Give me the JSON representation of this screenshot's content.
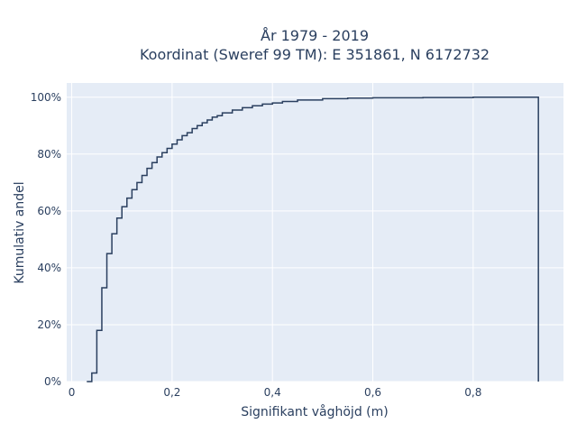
{
  "chart_data": {
    "type": "line",
    "line_shape": "step",
    "title_lines": [
      "År 1979 - 2019",
      "Koordinat (Sweref 99 TM): E 351861, N 6172732"
    ],
    "xlabel": "Signifikant våghöjd (m)",
    "ylabel": "Kumulativ andel",
    "xlim": [
      -0.01,
      0.98
    ],
    "ylim": [
      0,
      1.05
    ],
    "x_ticks": [
      0,
      0.2,
      0.4,
      0.6,
      0.8
    ],
    "x_tick_labels": [
      "0",
      "0,2",
      "0,4",
      "0,6",
      "0,8"
    ],
    "y_ticks": [
      0,
      0.2,
      0.4,
      0.6,
      0.8,
      1.0
    ],
    "y_tick_labels": [
      "0%",
      "20%",
      "40%",
      "60%",
      "80%",
      "100%"
    ],
    "grid": true,
    "colors": {
      "plot_bg": "#e5ecf6",
      "grid": "#ffffff",
      "line": "#2a3f5f",
      "text": "#2a3f5f"
    },
    "series": [
      {
        "x": [
          0.03,
          0.04,
          0.05,
          0.06,
          0.07,
          0.08,
          0.09,
          0.1,
          0.11,
          0.12,
          0.13,
          0.14,
          0.15,
          0.16,
          0.17,
          0.18,
          0.19,
          0.2,
          0.21,
          0.22,
          0.23,
          0.24,
          0.25,
          0.26,
          0.27,
          0.28,
          0.29,
          0.3,
          0.32,
          0.34,
          0.36,
          0.38,
          0.4,
          0.42,
          0.45,
          0.5,
          0.55,
          0.6,
          0.7,
          0.8,
          0.93,
          0.93
        ],
        "y": [
          0.0,
          0.03,
          0.18,
          0.33,
          0.45,
          0.52,
          0.575,
          0.615,
          0.645,
          0.675,
          0.7,
          0.725,
          0.75,
          0.77,
          0.79,
          0.805,
          0.82,
          0.835,
          0.85,
          0.865,
          0.875,
          0.89,
          0.9,
          0.91,
          0.92,
          0.93,
          0.935,
          0.945,
          0.955,
          0.963,
          0.97,
          0.976,
          0.98,
          0.985,
          0.99,
          0.995,
          0.997,
          0.998,
          0.999,
          1.0,
          1.0,
          0.0
        ]
      }
    ]
  }
}
